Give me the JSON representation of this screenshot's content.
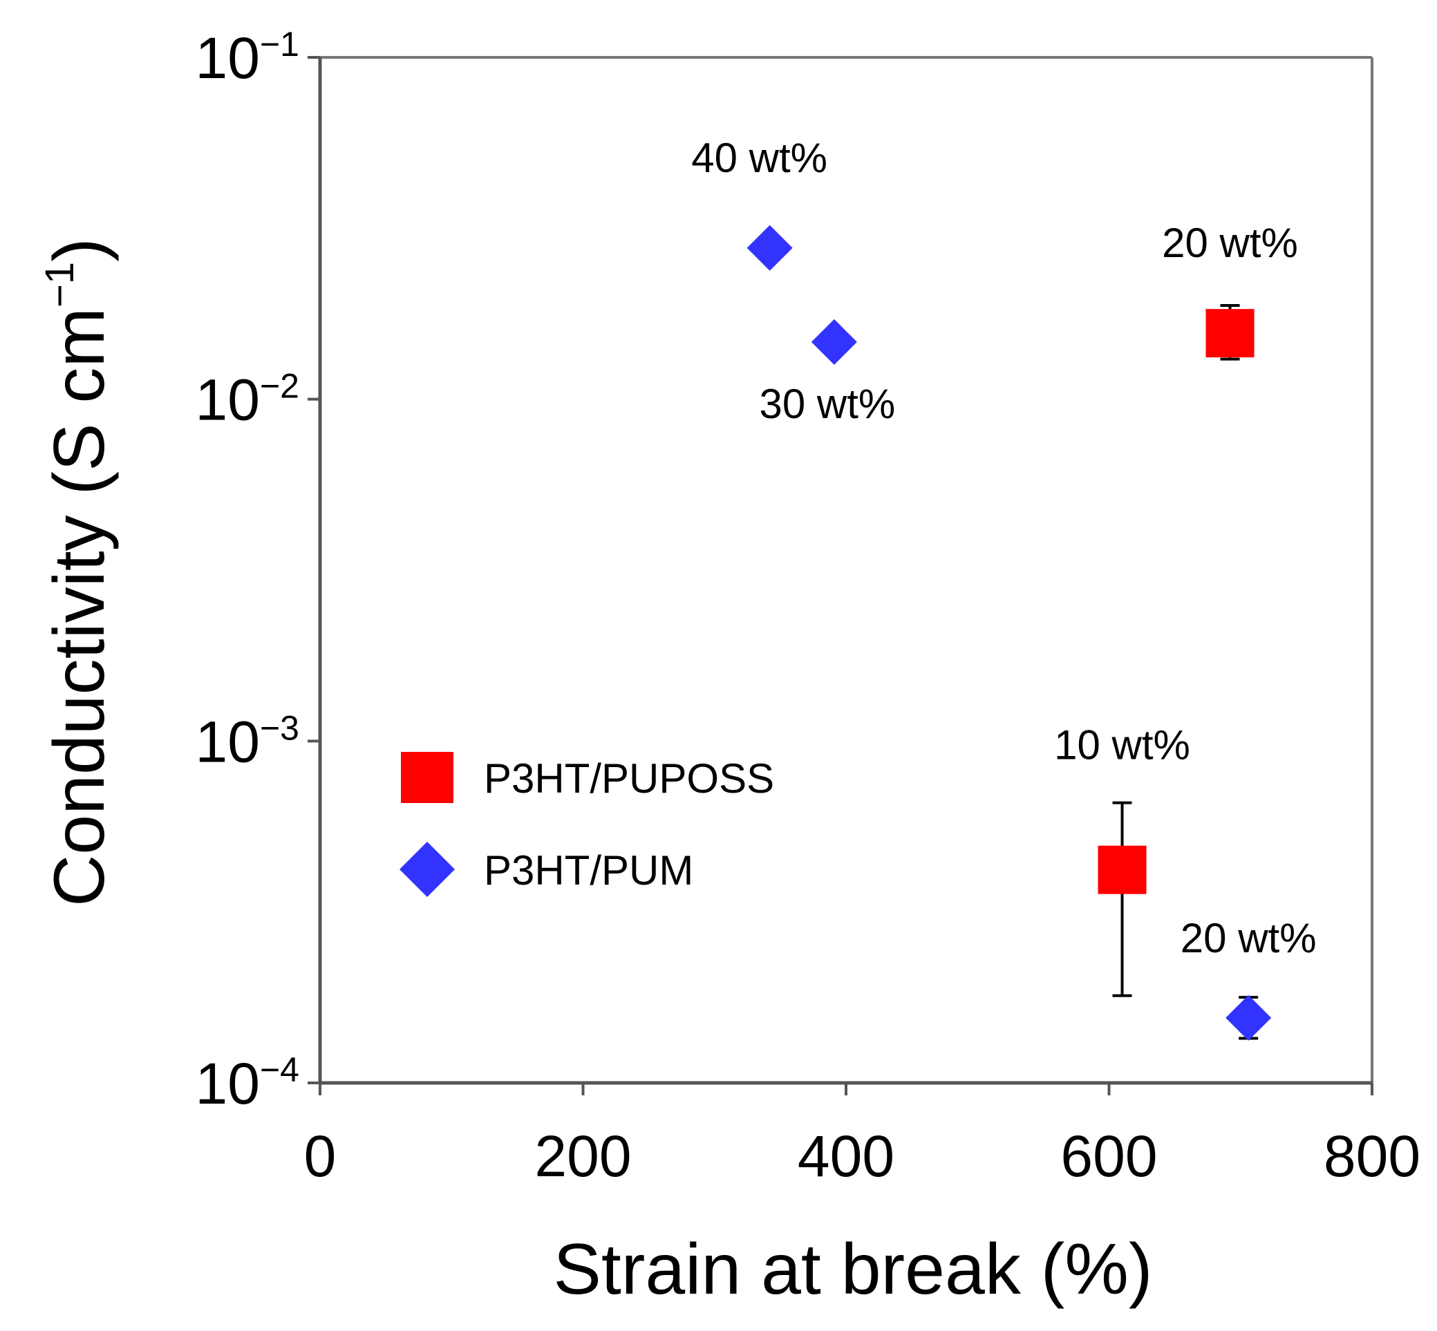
{
  "chart_data": {
    "type": "scatter",
    "title": "",
    "xlabel": "Strain at break (%)",
    "ylabel_main": "Conductivity  (S cm",
    "ylabel_sup": "−1",
    "ylabel_close": ")",
    "xlim": [
      0,
      800
    ],
    "ylim": [
      0.0001,
      0.1
    ],
    "yscale": "log",
    "x_ticks": [
      {
        "value": 0,
        "label": "0"
      },
      {
        "value": 200,
        "label": "200"
      },
      {
        "value": 400,
        "label": "400"
      },
      {
        "value": 600,
        "label": "600"
      },
      {
        "value": 800,
        "label": "800"
      }
    ],
    "y_ticks": [
      {
        "value": 0.1,
        "base": "10",
        "exp": "−1"
      },
      {
        "value": 0.01,
        "base": "10",
        "exp": "−2"
      },
      {
        "value": 0.001,
        "base": "10",
        "exp": "−3"
      },
      {
        "value": 0.0001,
        "base": "10",
        "exp": "−4"
      }
    ],
    "legend_position": "center-left",
    "series": [
      {
        "name": "P3HT/PUPOSS",
        "marker": "square",
        "color": "#ff0000",
        "points": [
          {
            "x": 610,
            "y": 0.00042,
            "err_low": 0.00018,
            "err_high": 0.00066,
            "label": "10 wt%"
          },
          {
            "x": 692,
            "y": 0.0156,
            "err_low": 0.0131,
            "err_high": 0.0188,
            "label": "20 wt%"
          }
        ]
      },
      {
        "name": "P3HT/PUM",
        "marker": "diamond",
        "color": "#3333ff",
        "points": [
          {
            "x": 342,
            "y": 0.0277,
            "label": "40 wt%"
          },
          {
            "x": 391,
            "y": 0.0147,
            "label": "30 wt%"
          },
          {
            "x": 706,
            "y": 0.000155,
            "err_low": 0.000135,
            "err_high": 0.000178,
            "label": "20 wt%"
          }
        ]
      }
    ]
  }
}
